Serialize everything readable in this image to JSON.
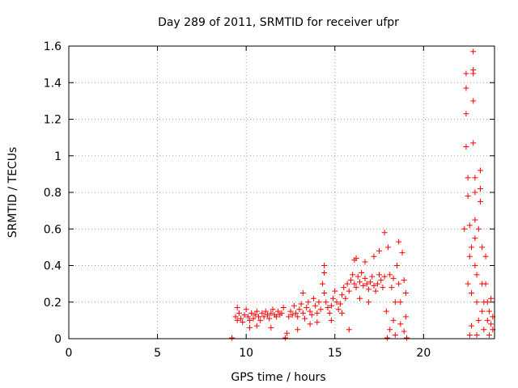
{
  "chart_data": {
    "type": "scatter",
    "title": "Day 289 of 2011, SRMTID for receiver ufpr",
    "xlabel": "GPS time / hours",
    "ylabel": "SRMTID / TECUs",
    "xlim": [
      0,
      24
    ],
    "ylim": [
      0,
      1.6
    ],
    "xticks": [
      0,
      5,
      10,
      15,
      20
    ],
    "xtick_labels": [
      "0",
      "5",
      "10",
      "15",
      "20"
    ],
    "yticks": [
      0,
      0.2,
      0.4,
      0.6,
      0.8,
      1,
      1.2,
      1.4,
      1.6
    ],
    "ytick_labels": [
      "0",
      "0.2",
      "0.4",
      "0.6",
      "0.8",
      "1",
      "1.2",
      "1.4",
      "1.6"
    ],
    "grid": true,
    "marker": "plus",
    "color": "#ff0000",
    "series": [
      {
        "name": "SRMTID",
        "points": [
          [
            9.2,
            0.0
          ],
          [
            12.2,
            0.0
          ],
          [
            9.4,
            0.12
          ],
          [
            9.5,
            0.1
          ],
          [
            9.6,
            0.14
          ],
          [
            9.7,
            0.11
          ],
          [
            9.8,
            0.09
          ],
          [
            9.9,
            0.13
          ],
          [
            10.0,
            0.16
          ],
          [
            10.1,
            0.12
          ],
          [
            10.2,
            0.1
          ],
          [
            10.3,
            0.14
          ],
          [
            10.4,
            0.11
          ],
          [
            10.5,
            0.13
          ],
          [
            10.6,
            0.15
          ],
          [
            10.7,
            0.12
          ],
          [
            10.8,
            0.1
          ],
          [
            10.9,
            0.14
          ],
          [
            11.0,
            0.12
          ],
          [
            11.1,
            0.15
          ],
          [
            11.2,
            0.13
          ],
          [
            11.3,
            0.11
          ],
          [
            11.4,
            0.14
          ],
          [
            11.5,
            0.16
          ],
          [
            11.6,
            0.13
          ],
          [
            11.7,
            0.12
          ],
          [
            11.8,
            0.15
          ],
          [
            11.9,
            0.13
          ],
          [
            12.0,
            0.14
          ],
          [
            12.1,
            0.17
          ],
          [
            12.3,
            0.03
          ],
          [
            12.4,
            0.12
          ],
          [
            12.5,
            0.15
          ],
          [
            12.6,
            0.13
          ],
          [
            12.7,
            0.18
          ],
          [
            12.8,
            0.14
          ],
          [
            12.9,
            0.12
          ],
          [
            13.0,
            0.16
          ],
          [
            13.1,
            0.19
          ],
          [
            13.2,
            0.14
          ],
          [
            13.3,
            0.11
          ],
          [
            13.4,
            0.17
          ],
          [
            13.5,
            0.2
          ],
          [
            13.6,
            0.15
          ],
          [
            13.7,
            0.13
          ],
          [
            13.8,
            0.22
          ],
          [
            13.9,
            0.18
          ],
          [
            14.0,
            0.14
          ],
          [
            14.1,
            0.2
          ],
          [
            14.2,
            0.16
          ],
          [
            14.3,
            0.3
          ],
          [
            14.4,
            0.25
          ],
          [
            14.5,
            0.2
          ],
          [
            14.6,
            0.17
          ],
          [
            14.7,
            0.14
          ],
          [
            14.8,
            0.18
          ],
          [
            14.9,
            0.22
          ],
          [
            15.0,
            0.26
          ],
          [
            15.1,
            0.2
          ],
          [
            15.2,
            0.16
          ],
          [
            15.3,
            0.19
          ],
          [
            15.4,
            0.24
          ],
          [
            15.5,
            0.28
          ],
          [
            15.6,
            0.22
          ],
          [
            15.7,
            0.3
          ],
          [
            15.8,
            0.26
          ],
          [
            15.9,
            0.32
          ],
          [
            16.0,
            0.35
          ],
          [
            16.1,
            0.3
          ],
          [
            16.2,
            0.28
          ],
          [
            16.3,
            0.34
          ],
          [
            16.4,
            0.31
          ],
          [
            16.5,
            0.36
          ],
          [
            16.6,
            0.29
          ],
          [
            16.7,
            0.33
          ],
          [
            16.8,
            0.3
          ],
          [
            16.9,
            0.27
          ],
          [
            17.0,
            0.31
          ],
          [
            17.1,
            0.34
          ],
          [
            17.2,
            0.29
          ],
          [
            17.3,
            0.26
          ],
          [
            17.4,
            0.3
          ],
          [
            17.5,
            0.35
          ],
          [
            17.6,
            0.32
          ],
          [
            17.7,
            0.28
          ],
          [
            17.8,
            0.34
          ],
          [
            9.5,
            0.17
          ],
          [
            10.2,
            0.06
          ],
          [
            10.6,
            0.07
          ],
          [
            11.4,
            0.06
          ],
          [
            12.9,
            0.05
          ],
          [
            13.2,
            0.25
          ],
          [
            13.6,
            0.08
          ],
          [
            14.0,
            0.09
          ],
          [
            14.4,
            0.36
          ],
          [
            14.4,
            0.4
          ],
          [
            14.8,
            0.1
          ],
          [
            15.4,
            0.14
          ],
          [
            15.8,
            0.05
          ],
          [
            16.1,
            0.43
          ],
          [
            16.2,
            0.44
          ],
          [
            16.4,
            0.22
          ],
          [
            16.7,
            0.42
          ],
          [
            16.9,
            0.2
          ],
          [
            17.2,
            0.45
          ],
          [
            17.5,
            0.48
          ],
          [
            17.8,
            0.58
          ],
          [
            18.0,
            0.5
          ],
          [
            18.1,
            0.35
          ],
          [
            18.2,
            0.28
          ],
          [
            18.3,
            0.1
          ],
          [
            18.4,
            0.2
          ],
          [
            18.5,
            0.4
          ],
          [
            18.6,
            0.53
          ],
          [
            18.6,
            0.3
          ],
          [
            18.7,
            0.2
          ],
          [
            18.7,
            0.08
          ],
          [
            18.8,
            0.47
          ],
          [
            18.9,
            0.32
          ],
          [
            19.0,
            0.25
          ],
          [
            19.0,
            0.12
          ],
          [
            18.1,
            0.05
          ],
          [
            18.4,
            0.02
          ],
          [
            18.9,
            0.04
          ],
          [
            17.9,
            0.15
          ],
          [
            17.95,
            0.0
          ],
          [
            18.3,
            0.33
          ],
          [
            19.05,
            0.0
          ],
          [
            22.3,
            0.6
          ],
          [
            22.4,
            1.05
          ],
          [
            22.4,
            1.45
          ],
          [
            22.4,
            1.37
          ],
          [
            22.4,
            1.23
          ],
          [
            22.5,
            0.88
          ],
          [
            22.5,
            0.78
          ],
          [
            22.5,
            0.3
          ],
          [
            22.6,
            0.45
          ],
          [
            22.6,
            0.62
          ],
          [
            22.7,
            0.25
          ],
          [
            22.7,
            0.5
          ],
          [
            22.8,
            1.57
          ],
          [
            22.8,
            1.47
          ],
          [
            22.8,
            1.45
          ],
          [
            22.8,
            1.3
          ],
          [
            22.8,
            1.07
          ],
          [
            22.9,
            0.88
          ],
          [
            22.9,
            0.8
          ],
          [
            22.9,
            0.65
          ],
          [
            22.9,
            0.55
          ],
          [
            22.9,
            0.4
          ],
          [
            23.0,
            0.2
          ],
          [
            23.0,
            0.35
          ],
          [
            23.1,
            0.6
          ],
          [
            23.1,
            0.1
          ],
          [
            23.2,
            0.82
          ],
          [
            23.2,
            0.92
          ],
          [
            23.2,
            0.75
          ],
          [
            23.3,
            0.3
          ],
          [
            23.3,
            0.5
          ],
          [
            23.3,
            0.15
          ],
          [
            23.4,
            0.2
          ],
          [
            23.4,
            0.05
          ],
          [
            23.5,
            0.45
          ],
          [
            23.5,
            0.3
          ],
          [
            23.6,
            0.1
          ],
          [
            23.6,
            0.2
          ],
          [
            23.7,
            0.02
          ],
          [
            23.7,
            0.15
          ],
          [
            23.8,
            0.08
          ],
          [
            23.8,
            0.22
          ],
          [
            23.9,
            0.05
          ],
          [
            23.9,
            0.12
          ],
          [
            22.6,
            0.02
          ],
          [
            22.7,
            0.07
          ],
          [
            23.0,
            0.02
          ]
        ]
      }
    ]
  }
}
